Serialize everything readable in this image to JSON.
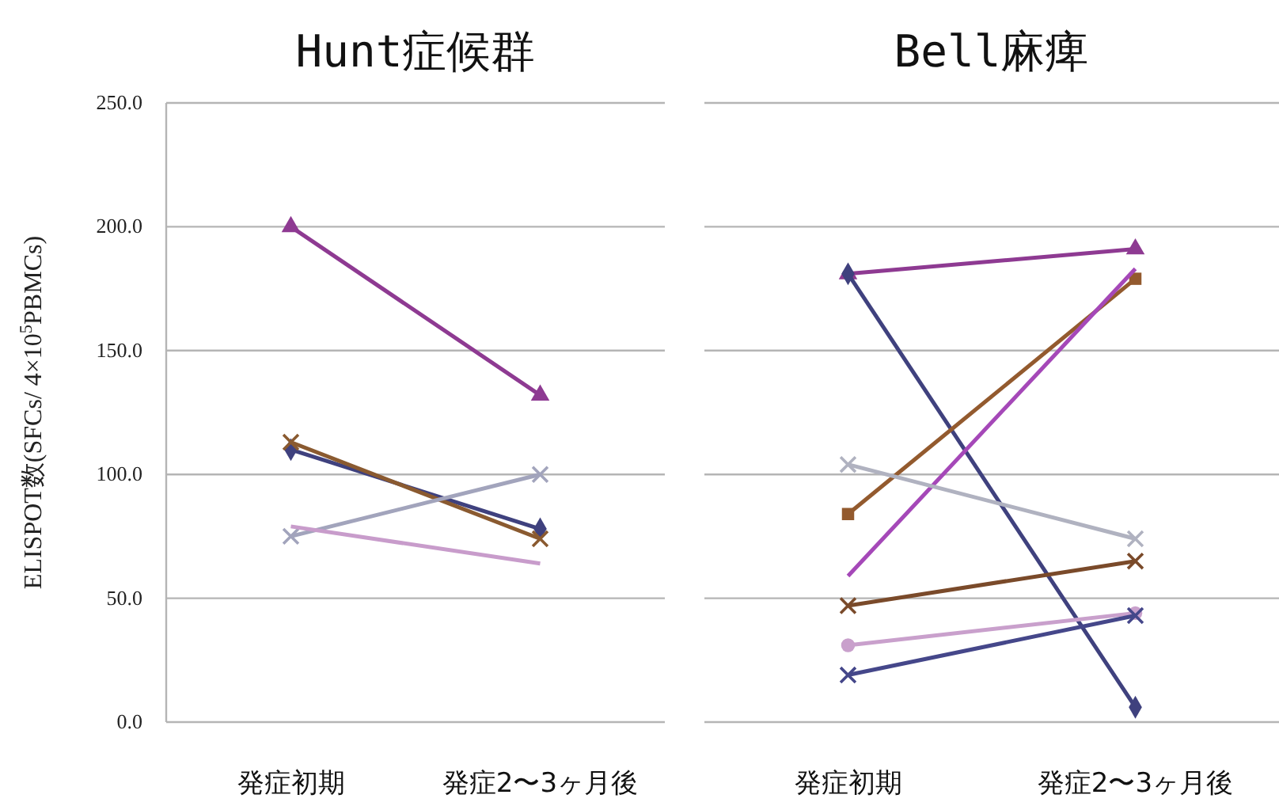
{
  "chart_data": [
    {
      "type": "line",
      "title": "Hunt症候群",
      "ylabel": "ELISPOT数(SFCs/ 4×10$^{5}$PBMCs)",
      "categories": [
        "発症初期",
        "発症2〜3ヶ月後"
      ],
      "ylim": [
        0,
        250
      ],
      "yticks": [
        {
          "value": 0,
          "label": "0.0"
        },
        {
          "value": 50,
          "label": "50.0"
        },
        {
          "value": 100,
          "label": "100.0"
        },
        {
          "value": 150,
          "label": "150.0"
        },
        {
          "value": 200,
          "label": "200.0"
        },
        {
          "value": 250,
          "label": "250.0"
        }
      ],
      "grid": "y",
      "series": [
        {
          "color": "#8e3a92",
          "marker": "triangle",
          "values": [
            200,
            132
          ]
        },
        {
          "color": "#3f417e",
          "marker": "diamond",
          "values": [
            110,
            78
          ]
        },
        {
          "color": "#8a5a30",
          "marker": "cross",
          "values": [
            113,
            74
          ]
        },
        {
          "color": "#a2a4bc",
          "marker": "cross",
          "values": [
            75,
            100
          ]
        },
        {
          "color": "#c89ccb",
          "marker": "none",
          "values": [
            79,
            64
          ]
        }
      ]
    },
    {
      "type": "line",
      "title": "Bell麻痺",
      "categories": [
        "発症初期",
        "発症2〜3ヶ月後"
      ],
      "ylim": [
        0,
        250
      ],
      "yticks": [
        0,
        50,
        100,
        150,
        200,
        250
      ],
      "grid": "y",
      "tick_labels": "x",
      "series": [
        {
          "color": "#8e3a92",
          "marker": "triangle",
          "values": [
            181,
            191
          ]
        },
        {
          "color": "#3f417e",
          "marker": "diamond",
          "values": [
            181,
            6
          ]
        },
        {
          "color": "#935a2e",
          "marker": "square",
          "values": [
            84,
            179
          ]
        },
        {
          "color": "#a548b8",
          "marker": "none",
          "values": [
            59,
            183
          ]
        },
        {
          "color": "#b0b2c0",
          "marker": "cross",
          "values": [
            104,
            74
          ]
        },
        {
          "color": "#7a4a2a",
          "marker": "cross",
          "values": [
            47,
            65
          ]
        },
        {
          "color": "#c9a0cc",
          "marker": "circle",
          "values": [
            31,
            44
          ]
        },
        {
          "color": "#45478a",
          "marker": "cross",
          "values": [
            19,
            43
          ]
        }
      ]
    }
  ]
}
